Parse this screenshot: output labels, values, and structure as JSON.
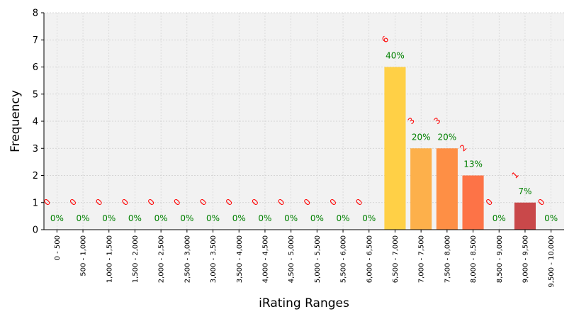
{
  "chart_data": {
    "type": "bar",
    "xlabel": "iRating Ranges",
    "ylabel": "Frequency",
    "ylim": [
      0,
      8
    ],
    "yticks": [
      "0",
      "1",
      "2",
      "3",
      "4",
      "5",
      "6",
      "7",
      "8"
    ],
    "grid": true,
    "categories": [
      "0 - 500",
      "500 - 1,000",
      "1,000 - 1,500",
      "1,500 - 2,000",
      "2,000 - 2,500",
      "2,500 - 3,000",
      "3,000 - 3,500",
      "3,500 - 4,000",
      "4,000 - 4,500",
      "4,500 - 5,000",
      "5,000 - 5,500",
      "5,500 - 6,000",
      "6,000 - 6,500",
      "6,500 - 7,000",
      "7,000 - 7,500",
      "7,500 - 8,000",
      "8,000 - 8,500",
      "8,500 - 9,000",
      "9,000 - 9,500",
      "9,500 - 10,000"
    ],
    "values": [
      0,
      0,
      0,
      0,
      0,
      0,
      0,
      0,
      0,
      0,
      0,
      0,
      0,
      6,
      3,
      3,
      2,
      0,
      1,
      0
    ],
    "count_labels": [
      "0",
      "0",
      "0",
      "0",
      "0",
      "0",
      "0",
      "0",
      "0",
      "0",
      "0",
      "0",
      "0",
      "6",
      "3",
      "3",
      "2",
      "0",
      "1",
      "0"
    ],
    "percent_labels": [
      "0%",
      "0%",
      "0%",
      "0%",
      "0%",
      "0%",
      "0%",
      "0%",
      "0%",
      "0%",
      "0%",
      "0%",
      "0%",
      "40%",
      "20%",
      "20%",
      "13%",
      "0%",
      "7%",
      "0%"
    ],
    "bar_colors": [
      "#fcd144",
      "#fcd144",
      "#fcd144",
      "#fcd144",
      "#fcd144",
      "#fcd144",
      "#fcd144",
      "#fcd144",
      "#fcd144",
      "#fcd144",
      "#fcd144",
      "#fcd144",
      "#fcd144",
      "#ffd046",
      "#fdb04b",
      "#fe8f45",
      "#fd7347",
      "#e85446",
      "#c9484a",
      "#b83a46"
    ],
    "count_label_color": "#ff0000",
    "percent_label_color": "#008000",
    "plot_background": "#f2f2f2",
    "grid_color": "#cccccc"
  }
}
